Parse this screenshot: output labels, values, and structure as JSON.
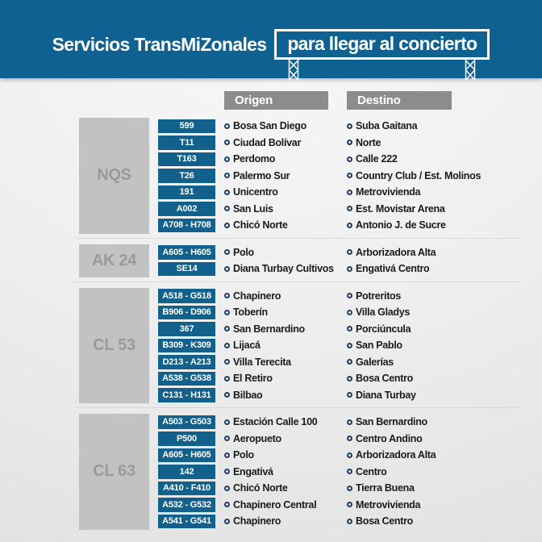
{
  "header": {
    "title_plain": "Servicios TransMiZonales",
    "title_boxed": "para llegar al concierto"
  },
  "columns": {
    "origin": "Origen",
    "destination": "Destino"
  },
  "colors": {
    "brand_blue": "#0f6191",
    "chip_blue": "#11618c",
    "column_header_gray": "#8c8c8c",
    "group_box_gray": "#c2c2c2",
    "group_text_gray": "#9a9a9a",
    "bullet_navy": "#203e63",
    "text_dark": "#1b1b1b"
  },
  "icons": {
    "truss_leg": "truss-leg-icon",
    "bullet": "ring-bullet-icon"
  },
  "sections": [
    {
      "group": "NQS",
      "routes": [
        {
          "code": "599",
          "origin": "Bosa San Diego",
          "destination": "Suba Gaitana"
        },
        {
          "code": "T11",
          "origin": "Ciudad Bolívar",
          "destination": "Norte"
        },
        {
          "code": "T163",
          "origin": "Perdomo",
          "destination": "Calle 222"
        },
        {
          "code": "T26",
          "origin": "Palermo Sur",
          "destination": "Country Club / Est. Molinos"
        },
        {
          "code": "191",
          "origin": "Unicentro",
          "destination": "Metrovivienda"
        },
        {
          "code": "A002",
          "origin": "San Luis",
          "destination": "Est. Movistar Arena"
        },
        {
          "code": "A708 - H708",
          "origin": "Chicó Norte",
          "destination": "Antonio J. de Sucre"
        }
      ]
    },
    {
      "group": "AK 24",
      "routes": [
        {
          "code": "A605 - H605",
          "origin": "Polo",
          "destination": "Arborizadora Alta"
        },
        {
          "code": "SE14",
          "origin": "Diana Turbay Cultivos",
          "destination": "Engativá Centro"
        }
      ]
    },
    {
      "group": "CL 53",
      "routes": [
        {
          "code": "A518 - G518",
          "origin": "Chapinero",
          "destination": "Potreritos"
        },
        {
          "code": "B906 - D906",
          "origin": "Toberín",
          "destination": "Villa Gladys"
        },
        {
          "code": "367",
          "origin": "San Bernardino",
          "destination": "Porciúncula"
        },
        {
          "code": "B309 - K309",
          "origin": "Lijacá",
          "destination": "San Pablo"
        },
        {
          "code": "D213 - A213",
          "origin": "Villa Terecita",
          "destination": "Galerías"
        },
        {
          "code": "A538 - G538",
          "origin": "El Retiro",
          "destination": "Bosa Centro"
        },
        {
          "code": "C131 - H131",
          "origin": "Bilbao",
          "destination": "Diana Turbay"
        }
      ]
    },
    {
      "group": "CL 63",
      "routes": [
        {
          "code": "A503 - G503",
          "origin": "Estación Calle 100",
          "destination": "San Bernardino"
        },
        {
          "code": "P500",
          "origin": "Aeropueto",
          "destination": "Centro Andino"
        },
        {
          "code": "A605 - H605",
          "origin": "Polo",
          "destination": "Arborizadora Alta"
        },
        {
          "code": "142",
          "origin": "Engativá",
          "destination": "Centro"
        },
        {
          "code": "A410 - F410",
          "origin": "Chicó Norte",
          "destination": "Tierra Buena"
        },
        {
          "code": "A532 - G532",
          "origin": "Chapinero Central",
          "destination": "Metrovivienda"
        },
        {
          "code": "A541 - G541",
          "origin": "Chapinero",
          "destination": "Bosa Centro"
        }
      ]
    }
  ]
}
